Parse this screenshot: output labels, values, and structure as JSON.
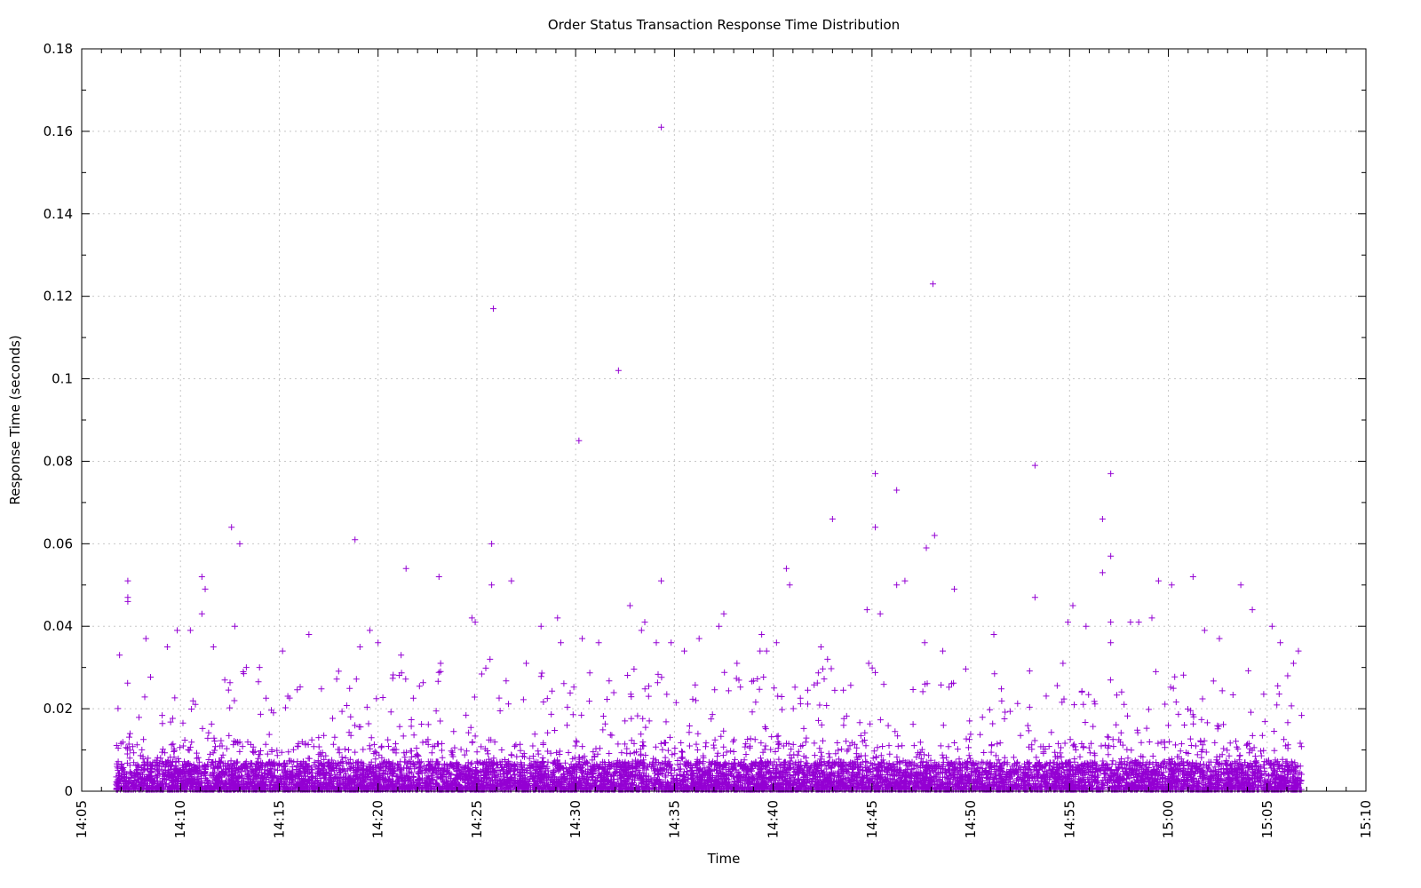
{
  "chart_data": {
    "type": "scatter",
    "title": "Order Status Transaction Response Time Distribution",
    "xlabel": "Time",
    "ylabel": "Response Time (seconds)",
    "xlim": [
      "14:05",
      "15:10"
    ],
    "ylim": [
      0,
      0.18
    ],
    "x_ticks": [
      "14:05",
      "14:10",
      "14:15",
      "14:20",
      "14:25",
      "14:30",
      "14:35",
      "14:40",
      "14:45",
      "14:50",
      "14:55",
      "15:00",
      "15:05",
      "15:10"
    ],
    "y_ticks": [
      "0",
      "0.02",
      "0.04",
      "0.06",
      "0.08",
      "0.1",
      "0.12",
      "0.14",
      "0.16",
      "0.18"
    ],
    "x_range_of_data": [
      "14:06:45",
      "15:06:45"
    ],
    "grid": true,
    "marker": "+",
    "colors": {
      "series": "#9400d3"
    },
    "series": [
      {
        "points": [
          {
            "x": "14:06:55",
            "y": 0.033
          },
          {
            "x": "14:07:20",
            "y": 0.051
          },
          {
            "x": "14:07:20",
            "y": 0.047
          },
          {
            "x": "14:07:20",
            "y": 0.046
          },
          {
            "x": "14:08:15",
            "y": 0.037
          },
          {
            "x": "14:09:50",
            "y": 0.039
          },
          {
            "x": "14:09:20",
            "y": 0.035
          },
          {
            "x": "14:10:30",
            "y": 0.039
          },
          {
            "x": "14:11:05",
            "y": 0.052
          },
          {
            "x": "14:11:05",
            "y": 0.043
          },
          {
            "x": "14:11:15",
            "y": 0.049
          },
          {
            "x": "14:11:40",
            "y": 0.035
          },
          {
            "x": "14:12:35",
            "y": 0.064
          },
          {
            "x": "14:12:45",
            "y": 0.04
          },
          {
            "x": "14:13:00",
            "y": 0.06
          },
          {
            "x": "14:13:20",
            "y": 0.03
          },
          {
            "x": "14:14:00",
            "y": 0.03
          },
          {
            "x": "14:15:10",
            "y": 0.034
          },
          {
            "x": "14:16:30",
            "y": 0.038
          },
          {
            "x": "14:18:50",
            "y": 0.061
          },
          {
            "x": "14:19:05",
            "y": 0.035
          },
          {
            "x": "14:19:35",
            "y": 0.039
          },
          {
            "x": "14:20:00",
            "y": 0.036
          },
          {
            "x": "14:21:10",
            "y": 0.033
          },
          {
            "x": "14:21:25",
            "y": 0.054
          },
          {
            "x": "14:23:05",
            "y": 0.052
          },
          {
            "x": "14:23:10",
            "y": 0.031
          },
          {
            "x": "14:24:45",
            "y": 0.042
          },
          {
            "x": "14:24:55",
            "y": 0.041
          },
          {
            "x": "14:25:40",
            "y": 0.032
          },
          {
            "x": "14:25:45",
            "y": 0.06
          },
          {
            "x": "14:25:45",
            "y": 0.05
          },
          {
            "x": "14:25:50",
            "y": 0.117
          },
          {
            "x": "14:26:45",
            "y": 0.051
          },
          {
            "x": "14:27:30",
            "y": 0.031
          },
          {
            "x": "14:28:15",
            "y": 0.04
          },
          {
            "x": "14:29:05",
            "y": 0.042
          },
          {
            "x": "14:29:15",
            "y": 0.036
          },
          {
            "x": "14:30:10",
            "y": 0.085
          },
          {
            "x": "14:30:20",
            "y": 0.037
          },
          {
            "x": "14:31:10",
            "y": 0.036
          },
          {
            "x": "14:32:10",
            "y": 0.102
          },
          {
            "x": "14:32:45",
            "y": 0.045
          },
          {
            "x": "14:33:20",
            "y": 0.039
          },
          {
            "x": "14:33:30",
            "y": 0.041
          },
          {
            "x": "14:34:05",
            "y": 0.036
          },
          {
            "x": "14:34:20",
            "y": 0.161
          },
          {
            "x": "14:34:20",
            "y": 0.051
          },
          {
            "x": "14:34:50",
            "y": 0.036
          },
          {
            "x": "14:35:30",
            "y": 0.034
          },
          {
            "x": "14:36:15",
            "y": 0.037
          },
          {
            "x": "14:37:15",
            "y": 0.04
          },
          {
            "x": "14:37:30",
            "y": 0.043
          },
          {
            "x": "14:38:10",
            "y": 0.031
          },
          {
            "x": "14:39:20",
            "y": 0.034
          },
          {
            "x": "14:39:25",
            "y": 0.038
          },
          {
            "x": "14:39:40",
            "y": 0.034
          },
          {
            "x": "14:40:10",
            "y": 0.036
          },
          {
            "x": "14:40:40",
            "y": 0.054
          },
          {
            "x": "14:40:50",
            "y": 0.05
          },
          {
            "x": "14:42:25",
            "y": 0.035
          },
          {
            "x": "14:42:45",
            "y": 0.032
          },
          {
            "x": "14:43:00",
            "y": 0.066
          },
          {
            "x": "14:44:45",
            "y": 0.044
          },
          {
            "x": "14:44:50",
            "y": 0.031
          },
          {
            "x": "14:45:10",
            "y": 0.077
          },
          {
            "x": "14:45:10",
            "y": 0.064
          },
          {
            "x": "14:45:25",
            "y": 0.043
          },
          {
            "x": "14:46:15",
            "y": 0.073
          },
          {
            "x": "14:46:15",
            "y": 0.05
          },
          {
            "x": "14:46:40",
            "y": 0.051
          },
          {
            "x": "14:47:40",
            "y": 0.036
          },
          {
            "x": "14:47:45",
            "y": 0.059
          },
          {
            "x": "14:48:05",
            "y": 0.123
          },
          {
            "x": "14:48:10",
            "y": 0.062
          },
          {
            "x": "14:48:35",
            "y": 0.034
          },
          {
            "x": "14:49:10",
            "y": 0.049
          },
          {
            "x": "14:51:10",
            "y": 0.038
          },
          {
            "x": "14:53:15",
            "y": 0.079
          },
          {
            "x": "14:53:15",
            "y": 0.047
          },
          {
            "x": "14:54:40",
            "y": 0.031
          },
          {
            "x": "14:54:55",
            "y": 0.041
          },
          {
            "x": "14:55:10",
            "y": 0.045
          },
          {
            "x": "14:55:50",
            "y": 0.04
          },
          {
            "x": "14:56:40",
            "y": 0.066
          },
          {
            "x": "14:56:40",
            "y": 0.053
          },
          {
            "x": "14:57:05",
            "y": 0.077
          },
          {
            "x": "14:57:05",
            "y": 0.057
          },
          {
            "x": "14:57:05",
            "y": 0.041
          },
          {
            "x": "14:57:05",
            "y": 0.036
          },
          {
            "x": "14:58:05",
            "y": 0.041
          },
          {
            "x": "14:58:30",
            "y": 0.041
          },
          {
            "x": "14:59:10",
            "y": 0.042
          },
          {
            "x": "14:59:30",
            "y": 0.051
          },
          {
            "x": "15:00:10",
            "y": 0.05
          },
          {
            "x": "15:01:15",
            "y": 0.052
          },
          {
            "x": "15:01:50",
            "y": 0.039
          },
          {
            "x": "15:02:35",
            "y": 0.037
          },
          {
            "x": "15:03:40",
            "y": 0.05
          },
          {
            "x": "15:04:15",
            "y": 0.044
          },
          {
            "x": "15:05:15",
            "y": 0.04
          },
          {
            "x": "15:05:40",
            "y": 0.036
          },
          {
            "x": "15:06:20",
            "y": 0.031
          },
          {
            "x": "15:06:35",
            "y": 0.034
          }
        ],
        "dense_band": {
          "y_range": [
            0,
            0.012
          ],
          "sparse_y_range": [
            0.012,
            0.03
          ]
        }
      }
    ]
  }
}
